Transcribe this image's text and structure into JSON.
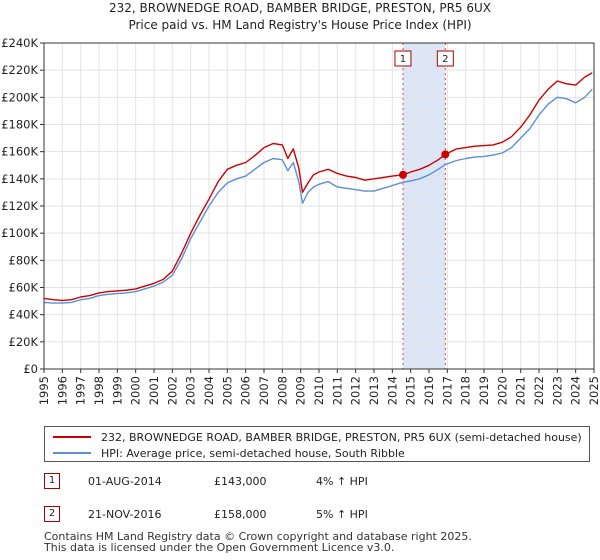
{
  "chart_data": {
    "type": "line",
    "title": "232, BROWNEDGE ROAD, BAMBER BRIDGE, PRESTON, PR5 6UX",
    "subtitle": "Price paid vs. HM Land Registry's House Price Index (HPI)",
    "xlim": [
      1995,
      2025
    ],
    "ylim": [
      0,
      240000
    ],
    "y_ticks": [
      0,
      20000,
      40000,
      60000,
      80000,
      100000,
      120000,
      140000,
      160000,
      180000,
      200000,
      220000,
      240000
    ],
    "y_tick_labels": [
      "£0",
      "£20K",
      "£40K",
      "£60K",
      "£80K",
      "£100K",
      "£120K",
      "£140K",
      "£160K",
      "£180K",
      "£200K",
      "£220K",
      "£240K"
    ],
    "x_ticks": [
      1995,
      1996,
      1997,
      1998,
      1999,
      2000,
      2001,
      2002,
      2003,
      2004,
      2005,
      2006,
      2007,
      2008,
      2009,
      2010,
      2011,
      2012,
      2013,
      2014,
      2015,
      2016,
      2017,
      2018,
      2019,
      2020,
      2021,
      2022,
      2023,
      2024,
      2025
    ],
    "x_tick_labels": [
      "1995",
      "1996",
      "1997",
      "1998",
      "1999",
      "2000",
      "2001",
      "2002",
      "2003",
      "2004",
      "2005",
      "2006",
      "2007",
      "2008",
      "2009",
      "2010",
      "2011",
      "2012",
      "2013",
      "2014",
      "2015",
      "2016",
      "2017",
      "2018",
      "2019",
      "2020",
      "2021",
      "2022",
      "2023",
      "2024",
      "2025"
    ],
    "grid": true,
    "highlight_span": {
      "from": 2014.58,
      "to": 2016.89,
      "color": "#dde6f7"
    },
    "series": [
      {
        "name": "232, BROWNEDGE ROAD, BAMBER BRIDGE, PRESTON, PR5 6UX (semi-detached house)",
        "color": "#cc0000",
        "x": [
          1995.0,
          1995.5,
          1996.0,
          1996.5,
          1997.0,
          1997.5,
          1998.0,
          1998.5,
          1999.0,
          1999.5,
          2000.0,
          2000.5,
          2001.0,
          2001.5,
          2002.0,
          2002.5,
          2003.0,
          2003.5,
          2004.0,
          2004.5,
          2005.0,
          2005.5,
          2006.0,
          2006.5,
          2007.0,
          2007.5,
          2008.0,
          2008.3,
          2008.6,
          2008.9,
          2009.1,
          2009.4,
          2009.7,
          2010.0,
          2010.5,
          2011.0,
          2011.5,
          2012.0,
          2012.5,
          2013.0,
          2013.5,
          2014.0,
          2014.58,
          2015.0,
          2015.5,
          2016.0,
          2016.5,
          2016.89,
          2017.5,
          2018.0,
          2018.5,
          2019.0,
          2019.5,
          2020.0,
          2020.5,
          2021.0,
          2021.5,
          2022.0,
          2022.5,
          2023.0,
          2023.5,
          2024.0,
          2024.5,
          2024.9
        ],
        "values": [
          52000,
          51000,
          50500,
          51000,
          53000,
          54000,
          56000,
          57000,
          57500,
          58000,
          59000,
          61000,
          63000,
          66000,
          72000,
          85000,
          100000,
          113000,
          125000,
          138000,
          147000,
          150000,
          152000,
          157000,
          163000,
          166000,
          165000,
          155000,
          162000,
          148000,
          130000,
          137000,
          143000,
          145000,
          147000,
          144000,
          142000,
          141000,
          139000,
          140000,
          141000,
          142000,
          143000,
          145000,
          147000,
          150000,
          154000,
          158000,
          162000,
          163000,
          164000,
          164500,
          165000,
          167000,
          171000,
          178000,
          187000,
          198000,
          206000,
          212000,
          210000,
          209000,
          215000,
          218000
        ]
      },
      {
        "name": "HPI: Average price, semi-detached house, South Ribble",
        "color": "#5b8fd6",
        "x": [
          1995.0,
          1995.5,
          1996.0,
          1996.5,
          1997.0,
          1997.5,
          1998.0,
          1998.5,
          1999.0,
          1999.5,
          2000.0,
          2000.5,
          2001.0,
          2001.5,
          2002.0,
          2002.5,
          2003.0,
          2003.5,
          2004.0,
          2004.5,
          2005.0,
          2005.5,
          2006.0,
          2006.5,
          2007.0,
          2007.5,
          2008.0,
          2008.3,
          2008.6,
          2008.9,
          2009.1,
          2009.4,
          2009.7,
          2010.0,
          2010.5,
          2011.0,
          2011.5,
          2012.0,
          2012.5,
          2013.0,
          2013.5,
          2014.0,
          2014.58,
          2015.0,
          2015.5,
          2016.0,
          2016.5,
          2016.89,
          2017.5,
          2018.0,
          2018.5,
          2019.0,
          2019.5,
          2020.0,
          2020.5,
          2021.0,
          2021.5,
          2022.0,
          2022.5,
          2023.0,
          2023.5,
          2024.0,
          2024.5,
          2024.9
        ],
        "values": [
          49000,
          48500,
          48500,
          49000,
          51000,
          52000,
          54000,
          55000,
          55500,
          56000,
          57000,
          59000,
          61000,
          64000,
          69000,
          81000,
          96000,
          108000,
          120000,
          130000,
          137000,
          140000,
          142000,
          147000,
          152000,
          155000,
          154000,
          146000,
          152000,
          138000,
          122000,
          130000,
          134000,
          136000,
          138000,
          134000,
          133000,
          132000,
          131000,
          131000,
          133000,
          135000,
          137500,
          138500,
          140000,
          143000,
          147000,
          150500,
          153500,
          155000,
          156000,
          156500,
          157500,
          159000,
          163000,
          170000,
          177000,
          187000,
          195000,
          200000,
          199000,
          196000,
          200000,
          206000
        ]
      }
    ],
    "sales": [
      {
        "label": "1",
        "x": 2014.58,
        "value": 143000
      },
      {
        "label": "2",
        "x": 2016.89,
        "value": 158000
      }
    ]
  },
  "legend": {
    "property_label": "232, BROWNEDGE ROAD, BAMBER BRIDGE, PRESTON, PR5 6UX (semi-detached house)",
    "hpi_label": "HPI: Average price, semi-detached house, South Ribble",
    "property_color": "#cc0000",
    "hpi_color": "#5b8fd6"
  },
  "transactions": [
    {
      "num": "1",
      "date": "01-AUG-2014",
      "price": "£143,000",
      "hpi": "4% ↑ HPI"
    },
    {
      "num": "2",
      "date": "21-NOV-2016",
      "price": "£158,000",
      "hpi": "5% ↑ HPI"
    }
  ],
  "footer": {
    "line1": "Contains HM Land Registry data © Crown copyright and database right 2025.",
    "line2": "This data is licensed under the Open Government Licence v3.0."
  }
}
